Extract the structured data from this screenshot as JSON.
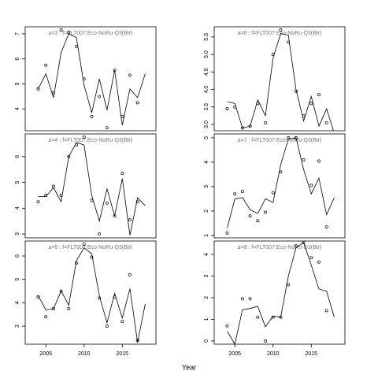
{
  "xlabel": "Year",
  "chart_data": [
    {
      "type": "line",
      "title": "a=3  :  f=FLT007:Eco-NoRu-Q3(Btr)",
      "x": [
        2004,
        2005,
        2006,
        2007,
        2008,
        2009,
        2010,
        2011,
        2012,
        2013,
        2014,
        2015,
        2016,
        2017,
        2018
      ],
      "series": [
        {
          "style": "line",
          "color": "#000000",
          "values": [
            4.8,
            5.4,
            4.45,
            6.25,
            7.0,
            6.85,
            4.95,
            3.85,
            5.2,
            3.95,
            5.55,
            3.35,
            4.8,
            4.45,
            5.4
          ]
        },
        {
          "style": "points",
          "color": "#000000",
          "values": [
            4.8,
            5.75,
            4.65,
            7.15,
            7.05,
            6.5,
            5.2,
            3.7,
            4.5,
            3.25,
            5.55,
            3.7,
            5.35,
            4.25,
            null
          ]
        }
      ],
      "xlim": [
        2002.3,
        2019.4
      ],
      "ylim": [
        3.13,
        7.28
      ],
      "yticks": [
        4,
        5,
        6,
        7
      ]
    },
    {
      "type": "line",
      "title": "a=4  :  f=FLT007:Eco-NoRu-Q3(Btr)",
      "x": [
        2004,
        2005,
        2006,
        2007,
        2008,
        2009,
        2010,
        2011,
        2012,
        2013,
        2014,
        2015,
        2016,
        2017,
        2018
      ],
      "series": [
        {
          "style": "line",
          "color": "#000000",
          "values": [
            4.45,
            4.45,
            4.8,
            4.25,
            6.0,
            6.55,
            6.45,
            4.5,
            3.5,
            4.75,
            3.7,
            5.15,
            2.95,
            4.4,
            4.1
          ]
        },
        {
          "style": "points",
          "color": "#000000",
          "values": [
            4.25,
            4.5,
            4.85,
            4.5,
            6.0,
            6.45,
            6.75,
            4.3,
            3.0,
            4.2,
            3.7,
            5.35,
            3.55,
            4.25,
            null
          ]
        }
      ],
      "xlim": [
        2002.3,
        2019.4
      ],
      "ylim": [
        2.85,
        6.88
      ],
      "yticks": [
        3,
        4,
        5,
        6
      ]
    },
    {
      "type": "line",
      "title": "a=5  :  f=FLT007:Eco-NoRu-Q3(Btr)",
      "x": [
        2004,
        2005,
        2006,
        2007,
        2008,
        2009,
        2010,
        2011,
        2012,
        2013,
        2014,
        2015,
        2016,
        2017,
        2018
      ],
      "series": [
        {
          "style": "line",
          "color": "#000000",
          "values": [
            4.3,
            3.7,
            3.75,
            4.5,
            3.9,
            5.8,
            6.35,
            6.1,
            4.3,
            3.15,
            4.4,
            3.35,
            4.6,
            2.3,
            3.95
          ]
        },
        {
          "style": "points",
          "color": "#000000",
          "values": [
            4.25,
            3.4,
            3.75,
            4.5,
            3.75,
            5.7,
            6.5,
            5.95,
            4.2,
            3.0,
            4.25,
            3.2,
            5.2,
            2.4,
            null
          ]
        }
      ],
      "xlim": [
        2002.3,
        2019.4
      ],
      "ylim": [
        2.23,
        6.64
      ],
      "yticks": [
        3,
        4,
        5,
        6
      ],
      "xticks": [
        2005,
        2010,
        2015
      ]
    },
    {
      "type": "line",
      "title": "a=6  :  f=FLT007:Eco-NoRu-Q3(Btr)",
      "x": [
        2004,
        2005,
        2006,
        2007,
        2008,
        2009,
        2010,
        2011,
        2012,
        2013,
        2014,
        2015,
        2016,
        2017,
        2018
      ],
      "series": [
        {
          "style": "line",
          "color": "#000000",
          "values": [
            3.65,
            3.6,
            2.9,
            2.95,
            3.7,
            3.25,
            4.9,
            5.6,
            5.55,
            4.0,
            3.1,
            3.8,
            2.95,
            3.45,
            2.75
          ]
        },
        {
          "style": "points",
          "color": "#000000",
          "values": [
            3.45,
            3.5,
            2.9,
            2.95,
            3.6,
            3.05,
            5.0,
            5.7,
            5.35,
            3.95,
            3.25,
            3.6,
            3.85,
            3.05,
            null
          ]
        }
      ],
      "xlim": [
        2002.3,
        2019.4
      ],
      "ylim": [
        2.82,
        5.79
      ],
      "yticks": [
        {
          "value": 3,
          "label": "3.0"
        },
        3.5,
        {
          "value": 4,
          "label": "4.0"
        },
        4.5,
        {
          "value": 5,
          "label": "5.0"
        },
        5.5
      ]
    },
    {
      "type": "line",
      "title": "a=7  :  f=FLT007:Eco-NoRu-Q3(Btr)",
      "x": [
        2004,
        2005,
        2006,
        2007,
        2008,
        2009,
        2010,
        2011,
        2012,
        2013,
        2014,
        2015,
        2016,
        2017,
        2018
      ],
      "series": [
        {
          "style": "line",
          "color": "#000000",
          "values": [
            1.3,
            2.5,
            2.55,
            2.05,
            1.9,
            2.5,
            2.35,
            3.9,
            4.95,
            5.0,
            3.7,
            2.7,
            3.35,
            1.85,
            2.55
          ]
        },
        {
          "style": "points",
          "color": "#000000",
          "values": [
            1.1,
            2.7,
            2.8,
            1.8,
            1.6,
            1.95,
            2.75,
            3.6,
            5.0,
            5.0,
            4.1,
            3.05,
            4.05,
            1.35,
            null
          ]
        }
      ],
      "xlim": [
        2002.3,
        2019.4
      ],
      "ylim": [
        0.9,
        5.16
      ],
      "yticks": [
        1,
        2,
        3,
        4,
        5
      ]
    },
    {
      "type": "line",
      "title": "a=8  :  f=FLT007:Eco-NoRu-Q3(Btr)",
      "x": [
        2004,
        2005,
        2006,
        2007,
        2008,
        2009,
        2010,
        2011,
        2012,
        2013,
        2014,
        2015,
        2016,
        2017,
        2018
      ],
      "series": [
        {
          "style": "line",
          "color": "#000000",
          "values": [
            0.45,
            -0.15,
            1.45,
            1.5,
            1.6,
            0.65,
            1.15,
            1.1,
            3.0,
            4.3,
            4.55,
            3.5,
            2.4,
            2.3,
            1.1
          ]
        },
        {
          "style": "points",
          "color": "#000000",
          "values": [
            0.7,
            null,
            1.95,
            1.95,
            1.1,
            0.0,
            1.1,
            1.1,
            2.6,
            4.4,
            4.55,
            3.85,
            3.65,
            1.4,
            null
          ]
        }
      ],
      "xlim": [
        2002.3,
        2019.4
      ],
      "ylim": [
        -0.15,
        4.62
      ],
      "yticks": [
        0,
        1,
        2,
        3,
        4
      ],
      "xticks": [
        2005,
        2010,
        2015
      ]
    }
  ]
}
